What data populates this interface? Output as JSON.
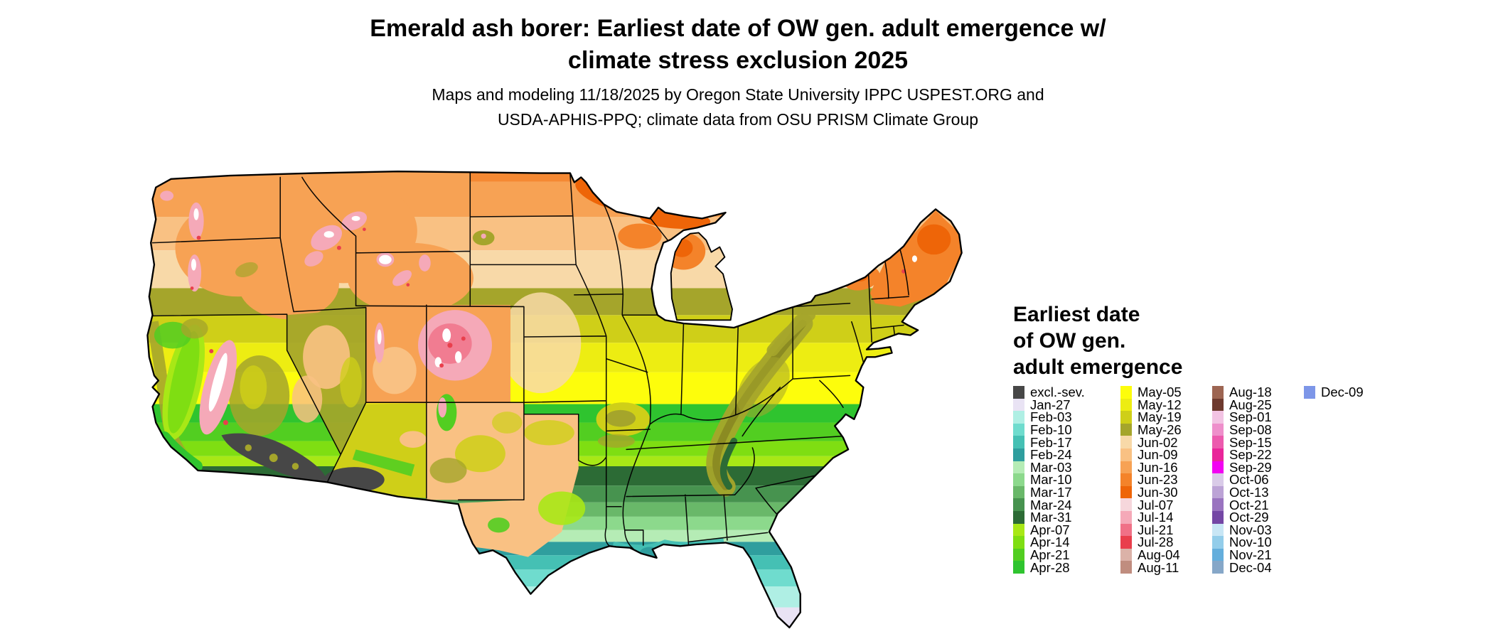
{
  "header": {
    "title_line1": "Emerald ash borer: Earliest date of OW gen. adult emergence w/",
    "title_line2": "climate stress exclusion 2025",
    "subtitle_line1": "Maps and modeling 11/18/2025 by Oregon State University IPPC USPEST.ORG and",
    "subtitle_line2": "USDA-APHIS-PPQ; climate data from OSU PRISM Climate Group"
  },
  "legend": {
    "title_lines": [
      "Earliest date",
      "of OW gen.",
      "adult emergence"
    ],
    "columns": [
      [
        {
          "label": "excl.-sev.",
          "color": "#474747"
        },
        {
          "label": "Jan-27",
          "color": "#E9E3F4"
        },
        {
          "label": "Feb-03",
          "color": "#AFEFE4"
        },
        {
          "label": "Feb-10",
          "color": "#6FDCCE"
        },
        {
          "label": "Feb-17",
          "color": "#45C0B4"
        },
        {
          "label": "Feb-24",
          "color": "#2F9E9E"
        },
        {
          "label": "Mar-03",
          "color": "#B5ECB5"
        },
        {
          "label": "Mar-10",
          "color": "#8CD98C"
        },
        {
          "label": "Mar-17",
          "color": "#69B869"
        },
        {
          "label": "Mar-24",
          "color": "#47934F"
        },
        {
          "label": "Mar-31",
          "color": "#2C6B35"
        },
        {
          "label": "Apr-07",
          "color": "#A8E816"
        },
        {
          "label": "Apr-14",
          "color": "#7FDE12"
        },
        {
          "label": "Apr-21",
          "color": "#52CE21"
        },
        {
          "label": "Apr-28",
          "color": "#2FC42F"
        }
      ],
      [
        {
          "label": "May-05",
          "color": "#FDFD0C"
        },
        {
          "label": "May-12",
          "color": "#EDED12"
        },
        {
          "label": "May-19",
          "color": "#CFCF18"
        },
        {
          "label": "May-26",
          "color": "#A5A52B"
        },
        {
          "label": "Jun-02",
          "color": "#F8D9A8"
        },
        {
          "label": "Jun-09",
          "color": "#F9C183"
        },
        {
          "label": "Jun-16",
          "color": "#F7A254"
        },
        {
          "label": "Jun-23",
          "color": "#F4832A"
        },
        {
          "label": "Jun-30",
          "color": "#EE6508"
        },
        {
          "label": "Jul-07",
          "color": "#F6D7DC"
        },
        {
          "label": "Jul-14",
          "color": "#F5A9B8"
        },
        {
          "label": "Jul-21",
          "color": "#F07187"
        },
        {
          "label": "Jul-28",
          "color": "#E93F4C"
        },
        {
          "label": "Aug-04",
          "color": "#DBB2A8"
        },
        {
          "label": "Aug-11",
          "color": "#C08D7F"
        }
      ],
      [
        {
          "label": "Aug-18",
          "color": "#9D6552"
        },
        {
          "label": "Aug-25",
          "color": "#6E3A2E"
        },
        {
          "label": "Sep-01",
          "color": "#F2C3E3"
        },
        {
          "label": "Sep-08",
          "color": "#EE8FCB"
        },
        {
          "label": "Sep-15",
          "color": "#EC5AAE"
        },
        {
          "label": "Sep-22",
          "color": "#E9259A"
        },
        {
          "label": "Sep-29",
          "color": "#F203F2"
        },
        {
          "label": "Oct-06",
          "color": "#D9CBE8"
        },
        {
          "label": "Oct-13",
          "color": "#BCA3D6"
        },
        {
          "label": "Oct-21",
          "color": "#9A74C0"
        },
        {
          "label": "Oct-29",
          "color": "#7447A5"
        },
        {
          "label": "Nov-03",
          "color": "#C8E6F5"
        },
        {
          "label": "Nov-10",
          "color": "#93CDEA"
        },
        {
          "label": "Nov-21",
          "color": "#64AEDC"
        },
        {
          "label": "Dec-04",
          "color": "#86A7C8"
        }
      ],
      [
        {
          "label": "Dec-09",
          "color": "#7D96E8"
        }
      ]
    ]
  }
}
